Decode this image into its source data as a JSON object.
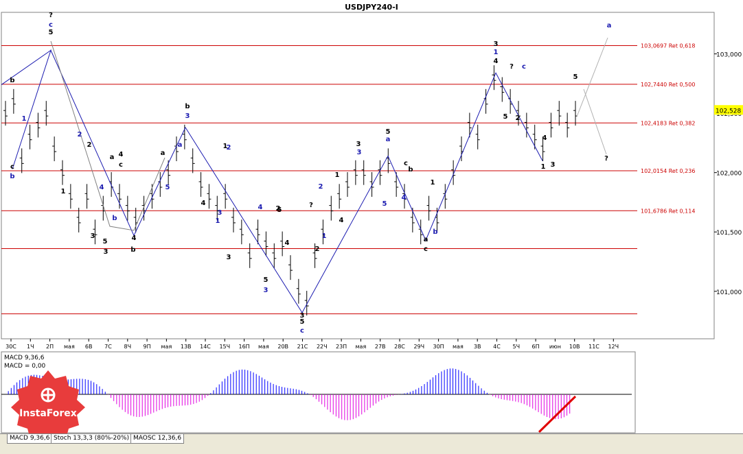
{
  "title": "USDJPY240-I",
  "price_tag": "102,528",
  "colors": {
    "grid": "#808080",
    "level": "#cc0000",
    "wave_blue": "#1b1bb0",
    "macd_pos": "#0000ff",
    "macd_neg": "#e000e0",
    "trend": "#e00000",
    "tag_bg": "#ffff00"
  },
  "chart_data": {
    "type": "line",
    "title": "USDJPY240-I",
    "y_ticks": [
      "103,000",
      "102,500",
      "102,000",
      "101,500",
      "101,000"
    ],
    "y_values": [
      103.0,
      102.5,
      102.0,
      101.5,
      101.0
    ],
    "ylim": [
      100.6,
      103.35
    ],
    "x_ticks": [
      "30С",
      "1Ч",
      "2П",
      "мая",
      "6В",
      "7С",
      "8Ч",
      "9П",
      "мая",
      "13В",
      "14С",
      "15Ч",
      "16П",
      "мая",
      "20В",
      "21С",
      "22Ч",
      "23П",
      "мая",
      "27В",
      "28С",
      "29Ч",
      "30П",
      "мая",
      "3В",
      "4С",
      "5Ч",
      "6П",
      "июн",
      "10В",
      "11С",
      "12Ч"
    ],
    "fib_levels": [
      {
        "label": "103,0697 Ret 0,618",
        "value": 103.0697
      },
      {
        "label": "102,7440 Ret 0,500",
        "value": 102.744
      },
      {
        "label": "102,4183 Ret 0,382",
        "value": 102.4183
      },
      {
        "label": "102,0154 Ret 0,236",
        "value": 102.0154
      },
      {
        "label": "101,6786 Ret 0,114",
        "value": 101.6786
      }
    ],
    "extra_levels": [
      101.36,
      100.81
    ],
    "last_price": 102.528,
    "series": [
      {
        "values": [
          102.5,
          102.6,
          102.1,
          102.3,
          102.4,
          102.5,
          102.2,
          102.0,
          101.8,
          101.6,
          101.8,
          101.5,
          101.7,
          101.9,
          101.8,
          101.7,
          101.6,
          101.7,
          101.8,
          101.9,
          102.0,
          102.2,
          102.3,
          102.1,
          101.9,
          101.8,
          101.7,
          101.8,
          101.6,
          101.5,
          101.3,
          101.5,
          101.4,
          101.3,
          101.4,
          101.2,
          101.0,
          100.9,
          101.3,
          101.5,
          101.7,
          101.8,
          101.9,
          102.0,
          102.0,
          101.9,
          102.0,
          102.1,
          101.9,
          101.8,
          101.6,
          101.5,
          101.7,
          101.6,
          101.8,
          102.0,
          102.2,
          102.4,
          102.3,
          102.6,
          102.8,
          102.7,
          102.6,
          102.5,
          102.4,
          102.3,
          102.2,
          102.4,
          102.5,
          102.4,
          102.5
        ]
      }
    ],
    "macd": {
      "label": "MACD 9,36,6",
      "label2": "MACD = 0,00"
    }
  },
  "wave_labels": [
    {
      "text": "?",
      "c": "b"
    },
    {
      "text": "c",
      "c": "w"
    },
    {
      "text": "5",
      "c": "b"
    },
    {
      "text": "b",
      "c": "b"
    },
    {
      "text": "c",
      "c": "b"
    },
    {
      "text": "b",
      "c": "w"
    },
    {
      "text": "1",
      "c": "b"
    },
    {
      "text": "4",
      "c": "b"
    },
    {
      "text": "3",
      "c": "b"
    },
    {
      "text": "2",
      "c": "w"
    },
    {
      "text": "1",
      "c": "w"
    },
    {
      "text": "a",
      "c": "b"
    },
    {
      "text": "c",
      "c": "b"
    },
    {
      "text": "4",
      "c": "w"
    },
    {
      "text": "4",
      "c": "b"
    },
    {
      "text": "5",
      "c": "b"
    },
    {
      "text": "3",
      "c": "b"
    },
    {
      "text": "b",
      "c": "b"
    },
    {
      "text": "3",
      "c": "w"
    },
    {
      "text": "5",
      "c": "w"
    },
    {
      "text": "a",
      "c": "w"
    },
    {
      "text": "a",
      "c": "b"
    },
    {
      "text": "b",
      "c": "b"
    },
    {
      "text": "b",
      "c": "w"
    },
    {
      "text": "c",
      "c": "b"
    },
    {
      "text": "2",
      "c": "b"
    },
    {
      "text": "1",
      "c": "b"
    },
    {
      "text": "4",
      "c": "b"
    },
    {
      "text": "3",
      "c": "w"
    },
    {
      "text": "1",
      "c": "w"
    },
    {
      "text": "2",
      "c": "w"
    },
    {
      "text": "2",
      "c": "b"
    },
    {
      "text": "3",
      "c": "b"
    },
    {
      "text": "4",
      "c": "w"
    },
    {
      "text": "5",
      "c": "b"
    },
    {
      "text": "3",
      "c": "w"
    },
    {
      "text": "4",
      "c": "b"
    },
    {
      "text": "5",
      "c": "b"
    },
    {
      "text": "3",
      "c": "b"
    },
    {
      "text": "5",
      "c": "b"
    },
    {
      "text": "c",
      "c": "w"
    },
    {
      "text": "?",
      "c": "b"
    },
    {
      "text": "1",
      "c": "w"
    },
    {
      "text": "2",
      "c": "w"
    },
    {
      "text": "1",
      "c": "b"
    },
    {
      "text": "3",
      "c": "b"
    },
    {
      "text": "4",
      "c": "b"
    },
    {
      "text": "3",
      "c": "w"
    },
    {
      "text": "5",
      "c": "b"
    },
    {
      "text": "a",
      "c": "w"
    },
    {
      "text": "5",
      "c": "w"
    },
    {
      "text": "4",
      "c": "w"
    },
    {
      "text": "b",
      "c": "b"
    },
    {
      "text": "a",
      "c": "b"
    },
    {
      "text": "c",
      "c": "b"
    },
    {
      "text": "b",
      "c": "w"
    },
    {
      "text": "1",
      "c": "b"
    },
    {
      "text": "2",
      "c": "b"
    },
    {
      "text": "3",
      "c": "b"
    },
    {
      "text": "1",
      "c": "w"
    },
    {
      "text": "4",
      "c": "b"
    },
    {
      "text": "?",
      "c": "b"
    },
    {
      "text": "c",
      "c": "w"
    },
    {
      "text": "5",
      "c": "b"
    },
    {
      "text": "2",
      "c": "b"
    },
    {
      "text": "4",
      "c": "b"
    },
    {
      "text": "1",
      "c": "b"
    },
    {
      "text": "3",
      "c": "b"
    },
    {
      "text": "5",
      "c": "b"
    },
    {
      "text": "a",
      "c": "w"
    },
    {
      "text": "?",
      "c": "b"
    },
    {
      "text": "b",
      "c": "w"
    },
    {
      "text": "?",
      "c": "b"
    },
    {
      "text": "c",
      "c": "w"
    }
  ],
  "tabs": [
    "MACD 9,36,6",
    "Stoch 13,3,3 (80%-20%)",
    "MAOSC 12,36,6"
  ],
  "logo_text": "InstaForex"
}
